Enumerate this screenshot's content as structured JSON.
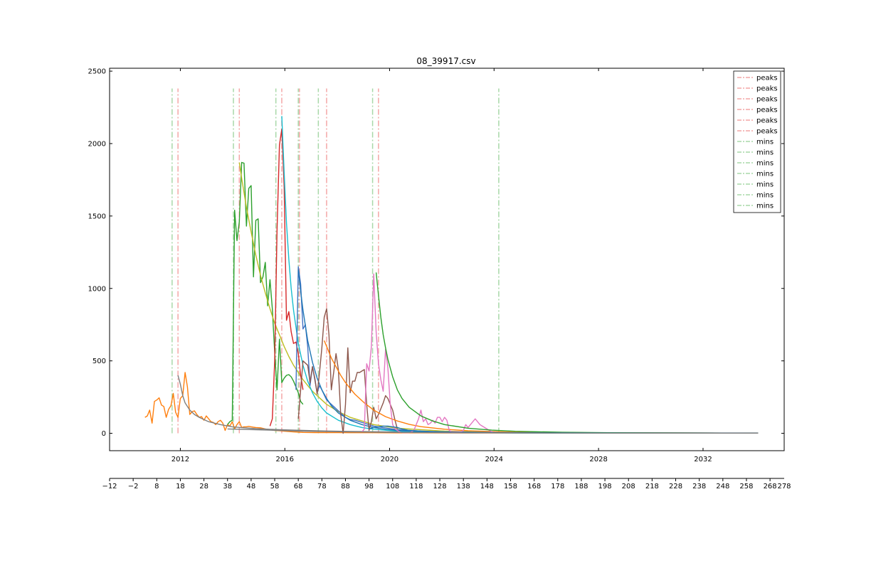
{
  "chart_data": {
    "type": "line",
    "title": "08_39917.csv",
    "xlabel": "",
    "ylabel": "",
    "grid": false,
    "legend_position": "top-right",
    "ylim": [
      -120,
      2520
    ],
    "y_ticks": [
      0,
      500,
      1000,
      1500,
      2000,
      2500
    ],
    "xlim_index": [
      -12,
      274
    ],
    "x_index_ticks": [
      -12,
      -2,
      8,
      18,
      28,
      38,
      48,
      58,
      68,
      78,
      88,
      98,
      108,
      118,
      128,
      138,
      148,
      158,
      168,
      178,
      188,
      198,
      208,
      218,
      228,
      238,
      248,
      258,
      268,
      278
    ],
    "date_axis": {
      "tick_labels": [
        "2012",
        "2016",
        "2020",
        "2024",
        "2028",
        "2032"
      ],
      "tick_index": [
        18,
        62.3,
        106.7,
        151,
        195.3,
        239.6
      ]
    },
    "legend": [
      {
        "label": "peaks",
        "color": "#f4a6a6"
      },
      {
        "label": "peaks",
        "color": "#f4a6a6"
      },
      {
        "label": "peaks",
        "color": "#f4a6a6"
      },
      {
        "label": "peaks",
        "color": "#f4a6a6"
      },
      {
        "label": "peaks",
        "color": "#f4a6a6"
      },
      {
        "label": "peaks",
        "color": "#f4a6a6"
      },
      {
        "label": "mins",
        "color": "#a8d8a8"
      },
      {
        "label": "mins",
        "color": "#a8d8a8"
      },
      {
        "label": "mins",
        "color": "#a8d8a8"
      },
      {
        "label": "mins",
        "color": "#a8d8a8"
      },
      {
        "label": "mins",
        "color": "#a8d8a8"
      },
      {
        "label": "mins",
        "color": "#a8d8a8"
      },
      {
        "label": "mins",
        "color": "#a8d8a8"
      }
    ],
    "peaks_x": [
      17,
      43,
      61,
      68.5,
      80,
      102
    ],
    "mins_x": [
      14.5,
      40.5,
      58.5,
      68,
      76.5,
      99.5,
      153
    ],
    "vline_range": [
      0,
      2380
    ],
    "series": [
      {
        "color": "#ff7f0e",
        "x": [
          3,
          4,
          5,
          6,
          7,
          8,
          9,
          10,
          11,
          12,
          13,
          14,
          15,
          16,
          17,
          18,
          19,
          20,
          21,
          22,
          23,
          24,
          25,
          26,
          27,
          28,
          29,
          30,
          31,
          32,
          33,
          34,
          35,
          36,
          37,
          38,
          39,
          40,
          41,
          42,
          43,
          44,
          45,
          46,
          47,
          48,
          49,
          50,
          52,
          54,
          56,
          58,
          60,
          62,
          64,
          66,
          68,
          70,
          75,
          80,
          85,
          90,
          95,
          100,
          110,
          120,
          130,
          140,
          150,
          160,
          200,
          263
        ],
        "values": [
          110,
          120,
          160,
          70,
          220,
          230,
          245,
          195,
          185,
          110,
          165,
          190,
          275,
          145,
          110,
          240,
          260,
          420,
          320,
          130,
          150,
          155,
          130,
          110,
          115,
          90,
          120,
          100,
          80,
          75,
          60,
          80,
          90,
          70,
          20,
          60,
          50,
          80,
          30,
          60,
          80,
          40,
          45,
          45,
          48,
          45,
          42,
          40,
          38,
          30,
          25,
          20,
          18,
          15,
          12,
          10,
          8,
          6,
          5,
          5,
          5,
          4,
          4,
          4,
          3,
          3,
          2,
          2,
          2,
          2,
          1,
          1
        ]
      },
      {
        "color": "#7f7f7f",
        "x": [
          17,
          18,
          19,
          20,
          22,
          24,
          26,
          28,
          30,
          35,
          40,
          45,
          50,
          60,
          70,
          80,
          90,
          100,
          120,
          140,
          160,
          200,
          263
        ],
        "values": [
          400,
          340,
          260,
          210,
          160,
          130,
          110,
          95,
          80,
          60,
          45,
          38,
          32,
          25,
          20,
          16,
          13,
          11,
          8,
          6,
          5,
          3,
          2
        ]
      },
      {
        "color": "#2ca02c",
        "x": [
          38,
          39,
          40,
          41,
          42,
          43,
          44,
          45,
          46,
          47,
          48,
          49,
          50,
          51,
          52,
          53,
          54,
          55,
          56,
          57,
          58,
          59,
          60,
          61,
          62,
          63,
          64,
          65,
          66,
          67,
          68,
          69,
          70
        ],
        "values": [
          60,
          80,
          90,
          1540,
          1330,
          1460,
          1870,
          1865,
          1430,
          1690,
          1710,
          1080,
          1470,
          1480,
          1040,
          1080,
          1180,
          880,
          1060,
          860,
          560,
          300,
          650,
          350,
          380,
          400,
          405,
          390,
          360,
          320,
          280,
          220,
          200
        ]
      },
      {
        "color": "#bcbd22",
        "x": [
          43,
          44,
          46,
          48,
          50,
          52,
          54,
          56,
          58,
          60,
          62,
          64,
          66,
          68,
          70,
          72,
          74,
          76,
          78,
          80,
          85,
          90,
          95,
          100,
          110,
          130,
          160,
          200,
          263
        ],
        "values": [
          1870,
          1760,
          1560,
          1390,
          1230,
          1090,
          970,
          860,
          760,
          680,
          600,
          530,
          470,
          420,
          370,
          330,
          290,
          260,
          230,
          200,
          150,
          110,
          85,
          60,
          35,
          15,
          5,
          2,
          1
        ]
      },
      {
        "color": "#d62728",
        "x": [
          56,
          57,
          58,
          59,
          60,
          61,
          62,
          63,
          64,
          65,
          66,
          67,
          68,
          69,
          70
        ],
        "values": [
          50,
          100,
          500,
          1400,
          1990,
          2100,
          1700,
          780,
          840,
          700,
          620,
          630,
          550,
          400,
          300
        ]
      },
      {
        "color": "#17becf",
        "x": [
          61,
          62,
          63,
          64,
          65,
          66,
          68,
          70,
          72,
          74,
          76,
          78,
          80,
          85,
          90,
          95,
          100,
          110,
          130,
          160,
          200,
          263
        ],
        "values": [
          2190,
          1800,
          1450,
          1200,
          1000,
          850,
          620,
          470,
          360,
          280,
          220,
          175,
          140,
          90,
          60,
          40,
          28,
          15,
          6,
          2,
          1,
          1
        ]
      },
      {
        "color": "#4472c4",
        "x": [
          67,
          68,
          69,
          70,
          71,
          72,
          73,
          74,
          75,
          76,
          77,
          78,
          80,
          82,
          84,
          86,
          88,
          90,
          92,
          94,
          96,
          98,
          100,
          102,
          104,
          106,
          108,
          110,
          115,
          120,
          130,
          140,
          150,
          160,
          200,
          263
        ],
        "values": [
          300,
          1150,
          1030,
          720,
          750,
          600,
          330,
          460,
          370,
          280,
          330,
          300,
          230,
          200,
          170,
          140,
          110,
          95,
          90,
          80,
          70,
          60,
          50,
          45,
          40,
          35,
          30,
          25,
          20,
          15,
          10,
          8,
          6,
          4,
          2,
          1
        ]
      },
      {
        "color": "#1f77b4",
        "x": [
          68,
          69,
          70,
          72,
          74,
          76,
          78,
          80,
          82,
          85,
          90,
          95,
          100,
          105,
          110,
          120,
          130,
          140,
          150,
          160,
          200,
          263
        ],
        "values": [
          1130,
          980,
          850,
          640,
          490,
          380,
          300,
          240,
          190,
          140,
          90,
          60,
          40,
          28,
          20,
          12,
          8,
          5,
          4,
          3,
          1,
          1
        ]
      },
      {
        "color": "#8c564b",
        "x": [
          68,
          70,
          72,
          73,
          74,
          75,
          76,
          77,
          78,
          79,
          80,
          81,
          82,
          83,
          84,
          85,
          86,
          87,
          88,
          89,
          90,
          91,
          92,
          93,
          94,
          95,
          96,
          97,
          98,
          99,
          100,
          101,
          102,
          103,
          104,
          105,
          106,
          107,
          108,
          109,
          110
        ],
        "values": [
          100,
          500,
          470,
          350,
          460,
          380,
          270,
          420,
          590,
          800,
          860,
          680,
          300,
          420,
          550,
          440,
          130,
          0,
          200,
          590,
          280,
          360,
          360,
          420,
          420,
          430,
          440,
          200,
          20,
          80,
          180,
          100,
          130,
          170,
          210,
          260,
          240,
          200,
          160,
          90,
          30
        ]
      },
      {
        "color": "#ff7f0e",
        "x": [
          79,
          80,
          82,
          84,
          86,
          88,
          90,
          92,
          94,
          96,
          98,
          100,
          105,
          110,
          115,
          120,
          130,
          140,
          150,
          160,
          180,
          200,
          263
        ],
        "values": [
          640,
          600,
          520,
          460,
          400,
          350,
          310,
          270,
          240,
          210,
          185,
          160,
          115,
          85,
          62,
          46,
          28,
          18,
          12,
          8,
          5,
          3,
          1
        ]
      },
      {
        "color": "#e377c2",
        "x": [
          95,
          96,
          97,
          98,
          99,
          100,
          101,
          102,
          103,
          104,
          105,
          106,
          107,
          108,
          109,
          110,
          111,
          112,
          113,
          114,
          115,
          116,
          117,
          118,
          119,
          120,
          121,
          122,
          123,
          124,
          125,
          126,
          127,
          128,
          129,
          130,
          131,
          132,
          133,
          134,
          135,
          136,
          137,
          138,
          139,
          140,
          141,
          142,
          143,
          144,
          145,
          146,
          147,
          148,
          149,
          150,
          151,
          152
        ],
        "values": [
          10,
          30,
          480,
          430,
          600,
          1100,
          700,
          480,
          370,
          290,
          580,
          450,
          200,
          60,
          30,
          20,
          10,
          5,
          5,
          5,
          5,
          10,
          20,
          60,
          100,
          160,
          80,
          100,
          60,
          70,
          90,
          70,
          110,
          110,
          80,
          110,
          90,
          20,
          10,
          10,
          10,
          10,
          10,
          20,
          60,
          40,
          60,
          80,
          100,
          80,
          60,
          50,
          40,
          30,
          20,
          10,
          5,
          5
        ]
      },
      {
        "color": "#2ca02c",
        "x": [
          101,
          102,
          103,
          104,
          105,
          106,
          108,
          110,
          112,
          115,
          120,
          125,
          130,
          140,
          150,
          160,
          180,
          200,
          263
        ],
        "values": [
          1110,
          950,
          800,
          680,
          590,
          510,
          390,
          300,
          240,
          180,
          120,
          85,
          60,
          35,
          22,
          14,
          7,
          4,
          1
        ]
      },
      {
        "color": "#1f77b4",
        "x": [
          98,
          100,
          102,
          104,
          106,
          108,
          110,
          112,
          115,
          120,
          125,
          130,
          140,
          150,
          160,
          200,
          263
        ],
        "values": [
          30,
          40,
          45,
          50,
          50,
          45,
          40,
          30,
          20,
          15,
          10,
          8,
          6,
          5,
          4,
          2,
          1
        ]
      },
      {
        "color": "#7f7f7f",
        "x": [
          38,
          50,
          60,
          70,
          80,
          90,
          100,
          110,
          120,
          130,
          140,
          150,
          160,
          200,
          263
        ],
        "values": [
          30,
          25,
          20,
          15,
          12,
          10,
          8,
          6,
          5,
          4,
          3,
          3,
          2,
          1,
          1
        ]
      }
    ]
  }
}
